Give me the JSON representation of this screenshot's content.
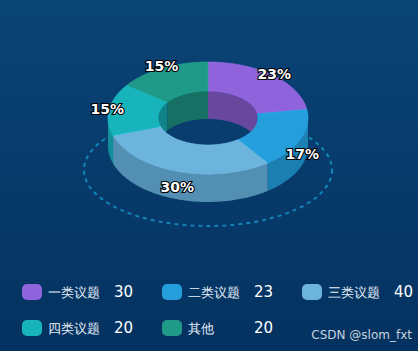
{
  "chart_data": {
    "type": "pie",
    "categories": [
      "一类议题",
      "二类议题",
      "三类议题",
      "四类议题",
      "其他"
    ],
    "values": [
      30,
      23,
      40,
      20,
      20
    ],
    "percent_labels": [
      "23%",
      "17%",
      "30%",
      "15%",
      "15%"
    ],
    "colors": [
      "#8f63db",
      "#249fdc",
      "#6cb4dc",
      "#17b4bc",
      "#1f9a88"
    ],
    "data_labels": true,
    "legend": "bottom",
    "watermark": "CSDN @slom_fxt"
  }
}
